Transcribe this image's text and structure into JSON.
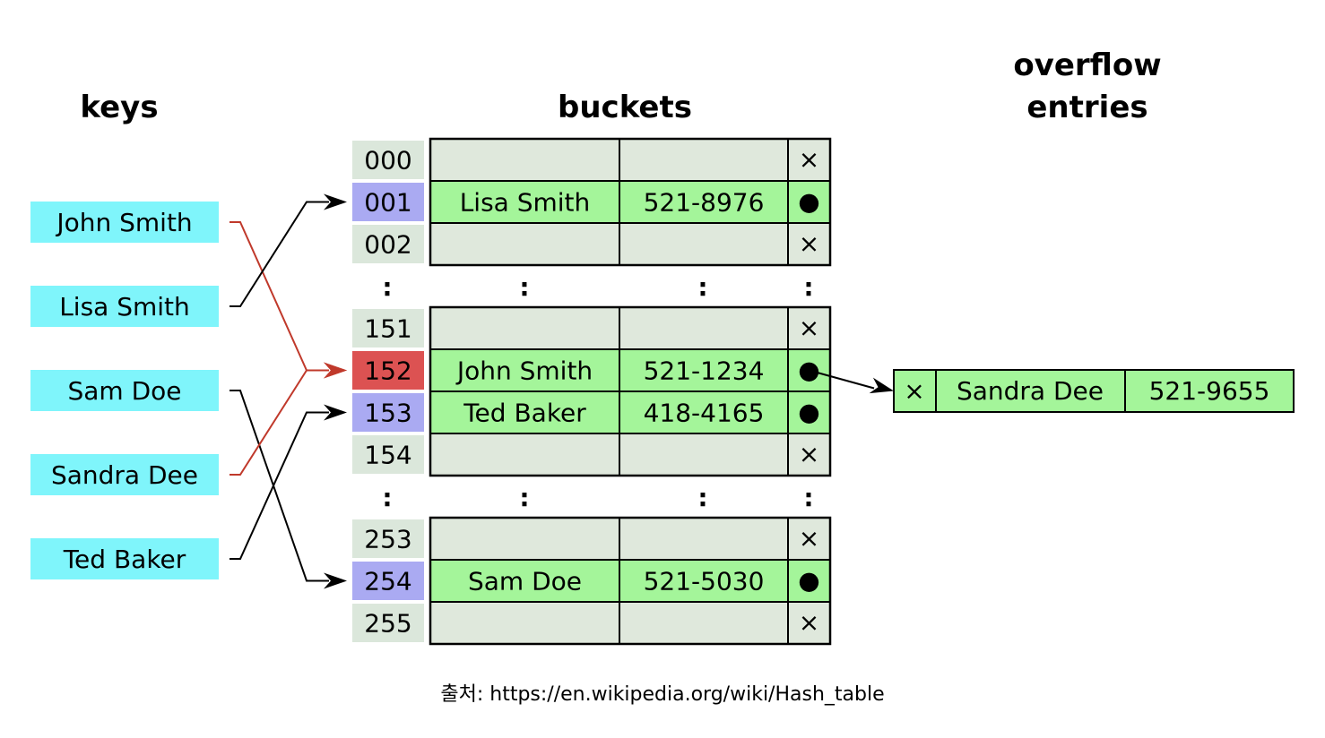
{
  "headers": {
    "keys": "keys",
    "buckets": "buckets",
    "overflow_line1": "overflow",
    "overflow_line2": "entries"
  },
  "keys": [
    "John Smith",
    "Lisa Smith",
    "Sam Doe",
    "Sandra Dee",
    "Ted Baker"
  ],
  "groups": [
    {
      "rows": [
        {
          "index": "000",
          "name": "",
          "phone": "",
          "link": "×",
          "state": "empty"
        },
        {
          "index": "001",
          "name": "Lisa Smith",
          "phone": "521-8976",
          "link": "●",
          "state": "filled"
        },
        {
          "index": "002",
          "name": "",
          "phone": "",
          "link": "×",
          "state": "empty"
        }
      ]
    },
    {
      "rows": [
        {
          "index": "151",
          "name": "",
          "phone": "",
          "link": "×",
          "state": "empty"
        },
        {
          "index": "152",
          "name": "John Smith",
          "phone": "521-1234",
          "link": "●",
          "state": "collision"
        },
        {
          "index": "153",
          "name": "Ted Baker",
          "phone": "418-4165",
          "link": "●",
          "state": "filled"
        },
        {
          "index": "154",
          "name": "",
          "phone": "",
          "link": "×",
          "state": "empty"
        }
      ]
    },
    {
      "rows": [
        {
          "index": "253",
          "name": "",
          "phone": "",
          "link": "×",
          "state": "empty"
        },
        {
          "index": "254",
          "name": "Sam Doe",
          "phone": "521-5030",
          "link": "●",
          "state": "filled"
        },
        {
          "index": "255",
          "name": "",
          "phone": "",
          "link": "×",
          "state": "empty"
        }
      ]
    }
  ],
  "ellipsis": ":",
  "overflow": {
    "link": "×",
    "name": "Sandra Dee",
    "phone": "521-9655"
  },
  "source": "출처: https://en.wikipedia.org/wiki/Hash_table",
  "colors": {
    "key_fill": "#7ff5fb",
    "index_fill": "#dbe7db",
    "index_hit": "#aaaaf2",
    "index_collision": "#dc5252",
    "cell_empty": "#dfe8dc",
    "cell_filled": "#a4f59a",
    "arrow": "#000000",
    "arrow_collision": "#c0392b"
  }
}
